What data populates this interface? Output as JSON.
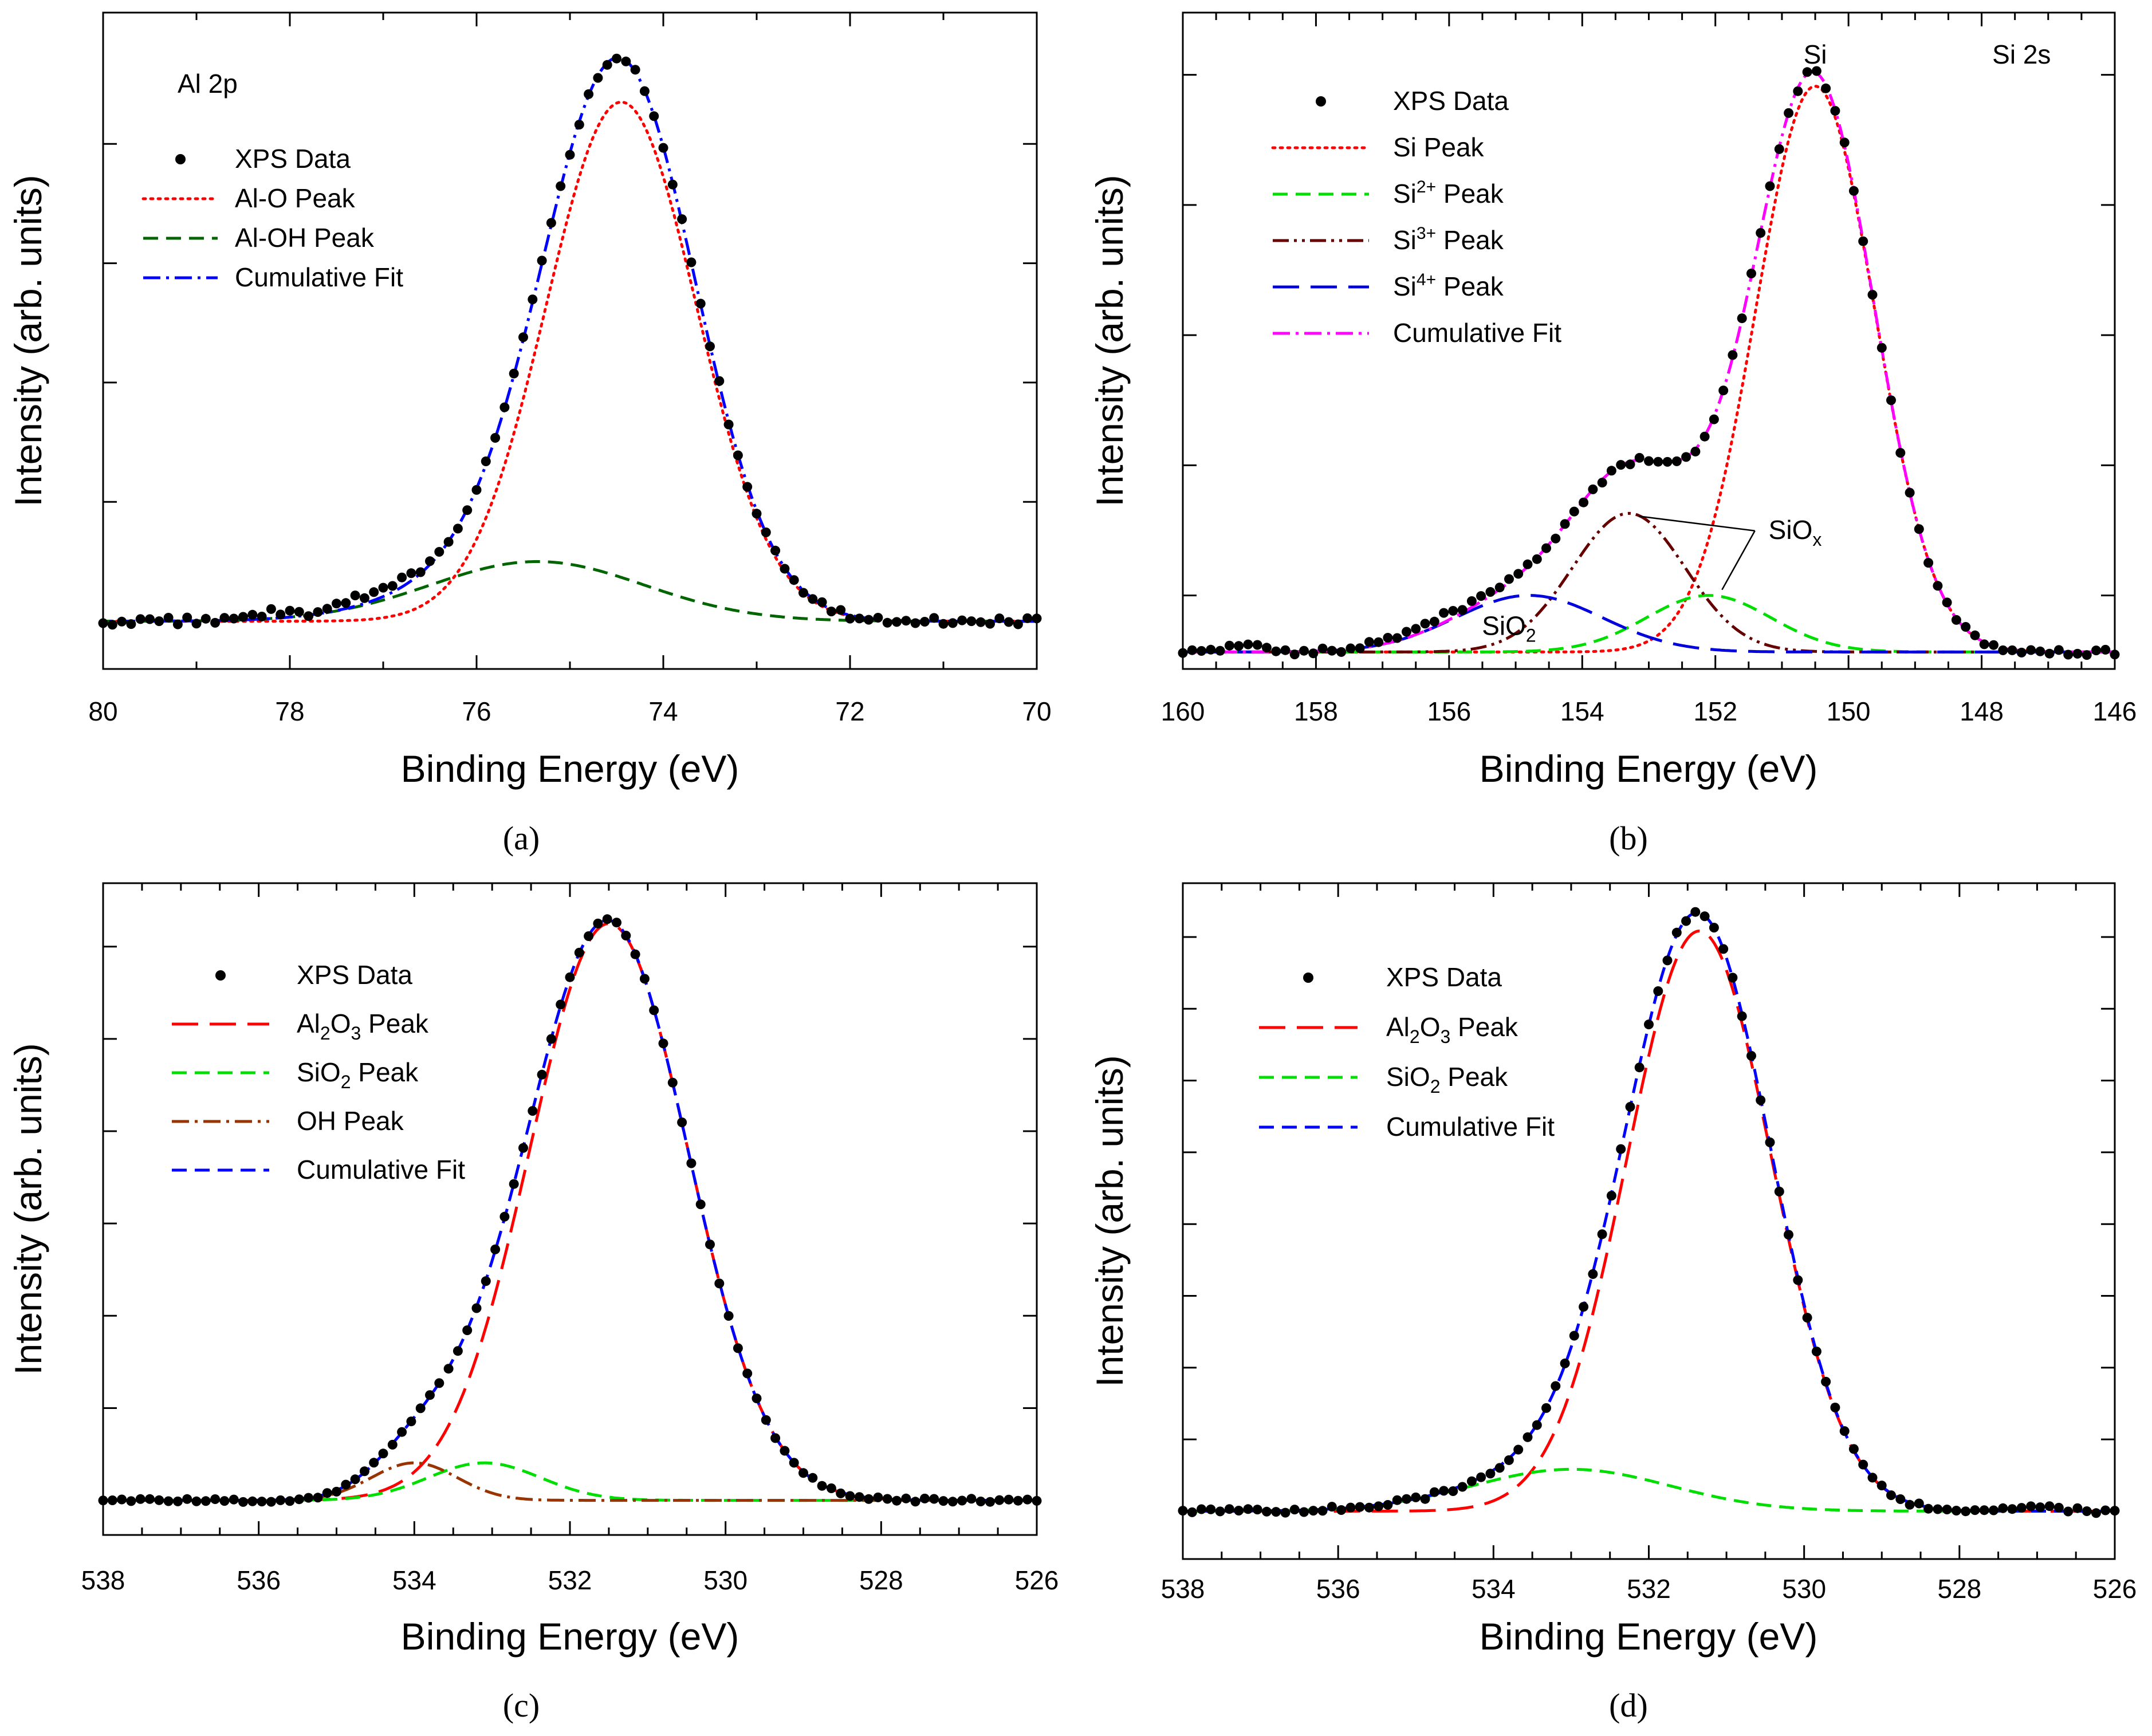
{
  "figure_labels": [
    "(a)",
    "(b)",
    "(c)",
    "(d)"
  ],
  "chart_data": [
    {
      "id": "a",
      "type": "line",
      "panel_label": "(a)",
      "inset_label": "Al 2p",
      "xlabel": "Binding Energy (eV)",
      "ylabel": "Intensity (arb. units)",
      "xlim": [
        80,
        70
      ],
      "xticks": [
        "80",
        "78",
        "76",
        "74",
        "72",
        "70"
      ],
      "x_minor_step": 1,
      "ylim": [
        -0.08,
        1.02
      ],
      "y_tick_values": [
        0,
        0.2,
        0.4,
        0.6,
        0.8
      ],
      "baseline": 0.0,
      "legend_position": "top-left",
      "legend": [
        {
          "label": "XPS Data",
          "style": "dots",
          "color": "#000000"
        },
        {
          "label": "Al-O Peak",
          "style": "dotted",
          "color": "#ff0000"
        },
        {
          "label": "Al-OH Peak",
          "style": "dashed",
          "color": "#006400"
        },
        {
          "label": "Cumulative Fit",
          "style": "dashdot",
          "color": "#0000ff"
        }
      ],
      "peaks": [
        {
          "name": "Al-O Peak",
          "center": 74.45,
          "height": 0.87,
          "fwhm": 1.9,
          "color": "#ff0000",
          "style": "dotted"
        },
        {
          "name": "Al-OH Peak",
          "center": 75.35,
          "height": 0.1,
          "fwhm": 2.7,
          "color": "#006400",
          "style": "dashed"
        }
      ],
      "cumulative": {
        "name": "Cumulative Fit",
        "color": "#0000ff",
        "style": "dashdot"
      },
      "data": {
        "name": "XPS Data",
        "step": 0.1,
        "noise": 0.006,
        "bumps": [
          [
            78.2,
            0.01,
            0.2
          ],
          [
            77.1,
            0.015,
            0.35
          ]
        ]
      },
      "annotations": []
    },
    {
      "id": "b",
      "type": "line",
      "panel_label": "(b)",
      "inset_label": "Si 2s",
      "xlabel": "Binding Energy (eV)",
      "ylabel": "Intensity (arb. units)",
      "xlim": [
        160,
        146
      ],
      "xticks": [
        "160",
        "158",
        "156",
        "154",
        "152",
        "150",
        "148",
        "146"
      ],
      "x_minor_step": 0.5,
      "ylim": [
        -0.03,
        1.13
      ],
      "y_tick_values": [
        0.1,
        0.33,
        0.56,
        0.79,
        1.02
      ],
      "baseline": 0.0,
      "legend_position": "top-left",
      "legend": [
        {
          "label": "XPS Data",
          "style": "dots",
          "color": "#000000"
        },
        {
          "label": "Si Peak",
          "style": "dotted",
          "color": "#ff0000"
        },
        {
          "label": "Si2+ Peak",
          "base": "Si",
          "sup": "2+",
          "tail": " Peak",
          "style": "dashed",
          "color": "#00dd00"
        },
        {
          "label": "Si3+ Peak",
          "base": "Si",
          "sup": "3+",
          "tail": " Peak",
          "style": "dashdotdot",
          "color": "#660000"
        },
        {
          "label": "Si4+ Peak",
          "base": "Si",
          "sup": "4+",
          "tail": " Peak",
          "style": "longdash",
          "color": "#0000dd"
        },
        {
          "label": "Cumulative Fit",
          "style": "dashdot",
          "color": "#ff00ff"
        }
      ],
      "peaks": [
        {
          "name": "Si Peak",
          "center": 150.5,
          "height": 1.0,
          "fwhm": 2.1,
          "color": "#ff0000",
          "style": "dotted"
        },
        {
          "name": "Si2+ Peak",
          "center": 152.1,
          "height": 0.1,
          "fwhm": 2.2,
          "color": "#00dd00",
          "style": "dashed"
        },
        {
          "name": "Si3+ Peak",
          "center": 153.3,
          "height": 0.245,
          "fwhm": 2.0,
          "color": "#660000",
          "style": "dashdotdot"
        },
        {
          "name": "Si4+ Peak",
          "center": 154.8,
          "height": 0.1,
          "fwhm": 2.6,
          "color": "#0000dd",
          "style": "longdash"
        }
      ],
      "cumulative": {
        "name": "Cumulative Fit",
        "color": "#ff00ff",
        "style": "dashdot"
      },
      "data": {
        "name": "XPS Data",
        "step": 0.14,
        "noise": 0.006,
        "bumps": [
          [
            159.0,
            0.012,
            0.3
          ],
          [
            156.2,
            0.012,
            0.6
          ]
        ]
      },
      "annotations": [
        {
          "text": "Si",
          "x": 150.5,
          "y": 1.04
        },
        {
          "text": "Si 2s",
          "x": 147.4,
          "y": 1.04
        },
        {
          "base": "SiO",
          "sub": "x",
          "x": 151.2,
          "y": 0.2,
          "leaders": [
            [
              153.15,
              0.24
            ],
            [
              151.9,
              0.11
            ]
          ]
        },
        {
          "base": "SiO",
          "sub": "2",
          "x": 155.1,
          "y": 0.03
        }
      ]
    },
    {
      "id": "c",
      "type": "line",
      "panel_label": "(c)",
      "xlabel": "Binding Energy (eV)",
      "ylabel": "Intensity (arb. units)",
      "xlim": [
        538,
        526
      ],
      "xticks": [
        "538",
        "536",
        "534",
        "532",
        "530",
        "528",
        "526"
      ],
      "x_minor_step": 0.5,
      "ylim": [
        -0.06,
        1.07
      ],
      "y_tick_values": [
        0,
        0.16,
        0.32,
        0.48,
        0.64,
        0.8,
        0.96
      ],
      "baseline": 0.0,
      "legend_position": "top-left",
      "legend": [
        {
          "label": "XPS Data",
          "style": "dots",
          "color": "#000000"
        },
        {
          "label": "Al2O3 Peak",
          "parts": [
            [
              "Al",
              ""
            ],
            [
              "2",
              "sub"
            ],
            [
              "O",
              ""
            ],
            [
              "3",
              "sub"
            ],
            [
              " Peak",
              ""
            ]
          ],
          "style": "longdash",
          "color": "#ff0000"
        },
        {
          "label": "SiO2 Peak",
          "parts": [
            [
              "SiO",
              ""
            ],
            [
              "2",
              "sub"
            ],
            [
              " Peak",
              ""
            ]
          ],
          "style": "dashed",
          "color": "#00dd00"
        },
        {
          "label": "OH Peak",
          "style": "dashdot",
          "color": "#993300"
        },
        {
          "label": "Cumulative Fit",
          "style": "dashed",
          "color": "#0000ff"
        }
      ],
      "peaks": [
        {
          "name": "Al2O3 Peak",
          "center": 531.5,
          "height": 1.0,
          "fwhm": 2.4,
          "color": "#ff0000",
          "style": "longdash"
        },
        {
          "name": "SiO2 Peak",
          "center": 533.1,
          "height": 0.065,
          "fwhm": 1.7,
          "color": "#00dd00",
          "style": "dashed"
        },
        {
          "name": "OH Peak",
          "center": 534.0,
          "height": 0.065,
          "fwhm": 1.3,
          "color": "#993300",
          "style": "dashdot"
        }
      ],
      "cumulative": {
        "name": "Cumulative Fit",
        "color": "#0000ff",
        "style": "dashed"
      },
      "data": {
        "name": "XPS Data",
        "step": 0.12,
        "noise": 0.003,
        "bumps": []
      },
      "annotations": []
    },
    {
      "id": "d",
      "type": "line",
      "panel_label": "(d)",
      "xlabel": "Binding Energy (eV)",
      "ylabel": "Intensity (arb. units)",
      "xlim": [
        538,
        526
      ],
      "xticks": [
        "538",
        "536",
        "534",
        "532",
        "530",
        "528",
        "526"
      ],
      "x_minor_step": 0.5,
      "ylim": [
        -0.08,
        1.05
      ],
      "y_tick_values": [
        0.12,
        0.24,
        0.36,
        0.48,
        0.6,
        0.72,
        0.84,
        0.96
      ],
      "baseline": 0.0,
      "legend_position": "top-left",
      "legend": [
        {
          "label": "XPS Data",
          "style": "dots",
          "color": "#000000"
        },
        {
          "label": "Al2O3 Peak",
          "parts": [
            [
              "Al",
              ""
            ],
            [
              "2",
              "sub"
            ],
            [
              "O",
              ""
            ],
            [
              "3",
              "sub"
            ],
            [
              " Peak",
              ""
            ]
          ],
          "style": "longdash",
          "color": "#ff0000"
        },
        {
          "label": "SiO2 Peak",
          "parts": [
            [
              "SiO",
              ""
            ],
            [
              "2",
              "sub"
            ],
            [
              " Peak",
              ""
            ]
          ],
          "style": "dashed",
          "color": "#00dd00"
        },
        {
          "label": "Cumulative Fit",
          "style": "dashed",
          "color": "#0000ff"
        }
      ],
      "peaks": [
        {
          "name": "Al2O3 Peak",
          "center": 531.35,
          "height": 0.97,
          "fwhm": 2.2,
          "color": "#ff0000",
          "style": "longdash"
        },
        {
          "name": "SiO2 Peak",
          "center": 533.0,
          "height": 0.07,
          "fwhm": 3.0,
          "color": "#00dd00",
          "style": "dashed"
        }
      ],
      "cumulative": {
        "name": "Cumulative Fit",
        "color": "#0000ff",
        "style": "dashed"
      },
      "data": {
        "name": "XPS Data",
        "step": 0.12,
        "noise": 0.004,
        "bumps": [
          [
            527.0,
            0.008,
            0.3
          ]
        ]
      },
      "annotations": []
    }
  ]
}
